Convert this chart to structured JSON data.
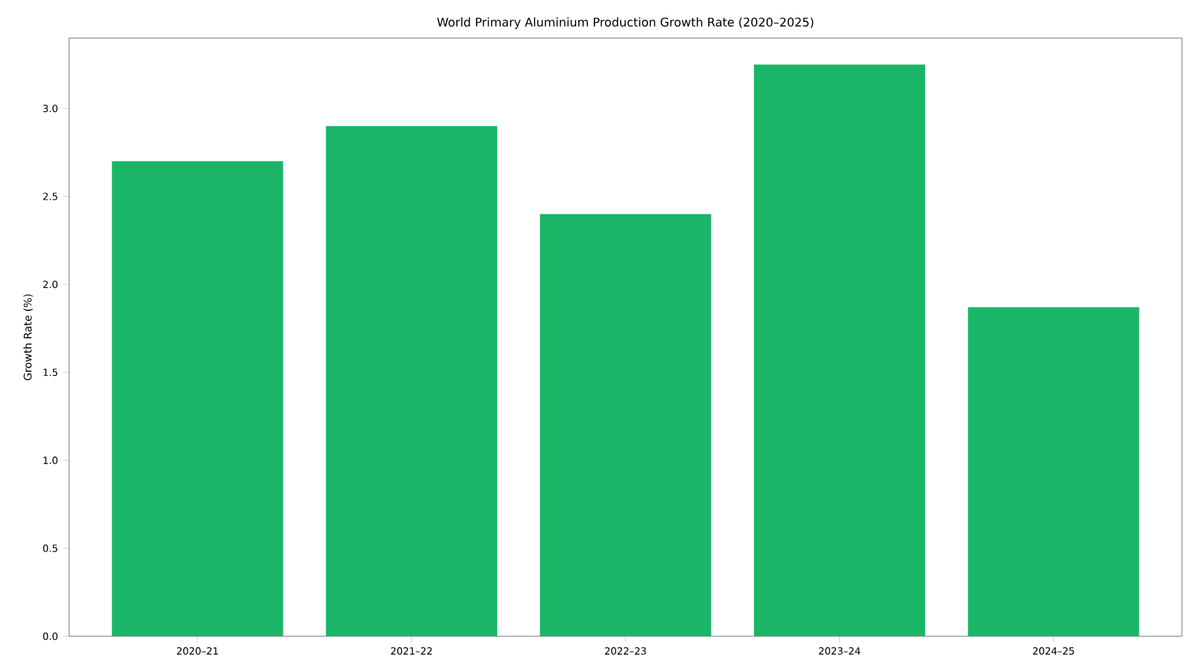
{
  "chart_data": {
    "type": "bar",
    "title": "World Primary Aluminium Production Growth Rate (2020–2025)",
    "ylabel": "Growth Rate (%)",
    "categories": [
      "2020–21",
      "2021–22",
      "2022–23",
      "2023–24",
      "2024–25"
    ],
    "values": [
      2.7,
      2.9,
      2.4,
      3.25,
      1.87
    ],
    "color": "#1ab567",
    "ylim": [
      0,
      3.4
    ],
    "yticks": [
      {
        "value": 0,
        "label": "0.0"
      },
      {
        "value": 0.5,
        "label": "0.5"
      },
      {
        "value": 1,
        "label": "1.0"
      },
      {
        "value": 1.5,
        "label": "1.5"
      },
      {
        "value": 2,
        "label": "2.0"
      },
      {
        "value": 2.5,
        "label": "2.5"
      },
      {
        "value": 3,
        "label": "3.0"
      }
    ],
    "grid": false
  }
}
